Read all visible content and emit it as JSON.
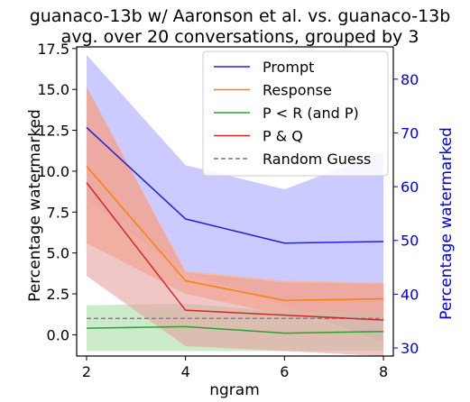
{
  "chart_data": {
    "type": "line",
    "title": "guanaco-13b w/ Aaronson et al. vs. guanaco-13b",
    "subtitle": "avg. over 20 conversations, grouped by 3",
    "xlabel": "ngram",
    "ylabel": "Percentage watermarked",
    "y2label": "Percentage watermarked",
    "x": [
      2,
      4,
      6,
      8
    ],
    "xlim": [
      1.8,
      8.2
    ],
    "ylim": [
      -1.3,
      17.6
    ],
    "y2lim": [
      28.5,
      86.0
    ],
    "xticks": [
      2,
      4,
      6,
      8
    ],
    "yticks": [
      0.0,
      2.5,
      5.0,
      7.5,
      10.0,
      12.5,
      15.0,
      17.5
    ],
    "ytick_labels": [
      "0.0",
      "2.5",
      "5.0",
      "7.5",
      "10.0",
      "12.5",
      "15.0",
      "17.5"
    ],
    "y2ticks": [
      30,
      40,
      50,
      60,
      70,
      80
    ],
    "y2tick_labels": [
      "30",
      "40",
      "50",
      "60",
      "70",
      "80"
    ],
    "legend_position": "top-right",
    "grid": false,
    "series": [
      {
        "name": "Prompt",
        "axis": "right",
        "color": "#1f1fe8",
        "values": [
          71.0,
          54.0,
          49.5,
          49.8
        ],
        "band_low": [
          57.5,
          44.0,
          38.0,
          31.0
        ],
        "band_high": [
          84.5,
          64.0,
          59.5,
          66.5
        ]
      },
      {
        "name": "Response",
        "axis": "left",
        "color": "#ff7f0e",
        "values": [
          10.3,
          3.3,
          2.1,
          2.2
        ],
        "band_low": [
          5.6,
          2.5,
          1.2,
          1.0
        ],
        "band_high": [
          15.0,
          3.9,
          3.3,
          3.2
        ]
      },
      {
        "name": "P < R (and P)",
        "axis": "left",
        "color": "#2ca02c",
        "values": [
          0.4,
          0.5,
          0.1,
          0.2
        ],
        "band_low": [
          -1.0,
          -1.0,
          -1.0,
          -1.0
        ],
        "band_high": [
          1.8,
          1.9,
          1.4,
          1.4
        ]
      },
      {
        "name": "P & Q",
        "axis": "left",
        "color": "#d62728",
        "values": [
          9.3,
          1.5,
          1.2,
          0.9
        ],
        "band_low": [
          3.6,
          -0.7,
          -1.0,
          -1.3
        ],
        "band_high": [
          15.2,
          3.8,
          3.2,
          3.1
        ]
      }
    ],
    "reference_line": {
      "name": "Random Guess",
      "value": 1.0,
      "color": "#777777",
      "style": "dashed"
    },
    "colors": {
      "prompt_band": "#b9b9ff",
      "response_band": "#ffb38a",
      "pq_band": "#e8a0a0",
      "green_band": "#b5e3b5",
      "right_axis": "#0000e0"
    }
  }
}
